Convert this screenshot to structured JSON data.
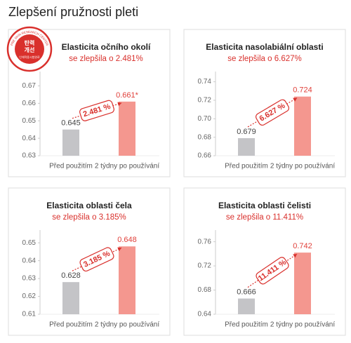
{
  "title": "Zlepšení pružnosti pleti",
  "badge": {
    "ring": "PRE SKIN RESEARCH CENTER",
    "text": [
      "탄력",
      "개선"
    ],
    "note": "인체적용시험완료"
  },
  "chart_data": [
    {
      "type": "bar",
      "title": "Elasticita očního okolí",
      "subtitle": "se zlepšila o 2.481%",
      "categories": [
        "Před použitím",
        "2 týdny po používání"
      ],
      "values": [
        0.645,
        0.661
      ],
      "value_labels": [
        "0.645",
        "0.661*"
      ],
      "colors": [
        "#c4c4c7",
        "#f4978f"
      ],
      "annotation": "2.481 %",
      "ylim": [
        0.63,
        0.675
      ],
      "yticks": [
        0.63,
        0.64,
        0.65,
        0.66,
        0.67
      ]
    },
    {
      "type": "bar",
      "title": "Elasticita nasolabiální oblasti",
      "subtitle": "se zlepšila o 6.627%",
      "categories": [
        "Před použitím",
        "2 týdny po používání"
      ],
      "values": [
        0.679,
        0.724
      ],
      "colors": [
        "#c4c4c7",
        "#f4978f"
      ],
      "annotation": "6.627 %",
      "ylim": [
        0.66,
        0.745
      ],
      "yticks": [
        0.66,
        0.68,
        {
          "value": 0.7,
          "label": "0.70"
        },
        0.72,
        0.74
      ]
    },
    {
      "type": "bar",
      "title": "Elasticita oblasti čela",
      "subtitle": "se zlepšila o 3.185%",
      "categories": [
        "Před použitím",
        "2 týdny po používání"
      ],
      "values": [
        0.628,
        0.648
      ],
      "colors": [
        "#c4c4c7",
        "#f4978f"
      ],
      "annotation": "3.185 %",
      "ylim": [
        0.61,
        0.654
      ],
      "yticks": [
        0.61,
        0.62,
        0.63,
        0.64,
        0.65
      ]
    },
    {
      "type": "bar",
      "title": "Elasticita oblasti čelisti",
      "subtitle": "se zlepšila o 11.411%",
      "categories": [
        "Před použitím",
        "2 týdny po používání"
      ],
      "values": [
        0.666,
        0.742
      ],
      "colors": [
        "#c4c4c7",
        "#f4978f"
      ],
      "annotation": "11.411 %",
      "ylim": [
        0.64,
        0.77
      ],
      "yticks": [
        0.64,
        0.68,
        0.72,
        0.76
      ]
    }
  ]
}
